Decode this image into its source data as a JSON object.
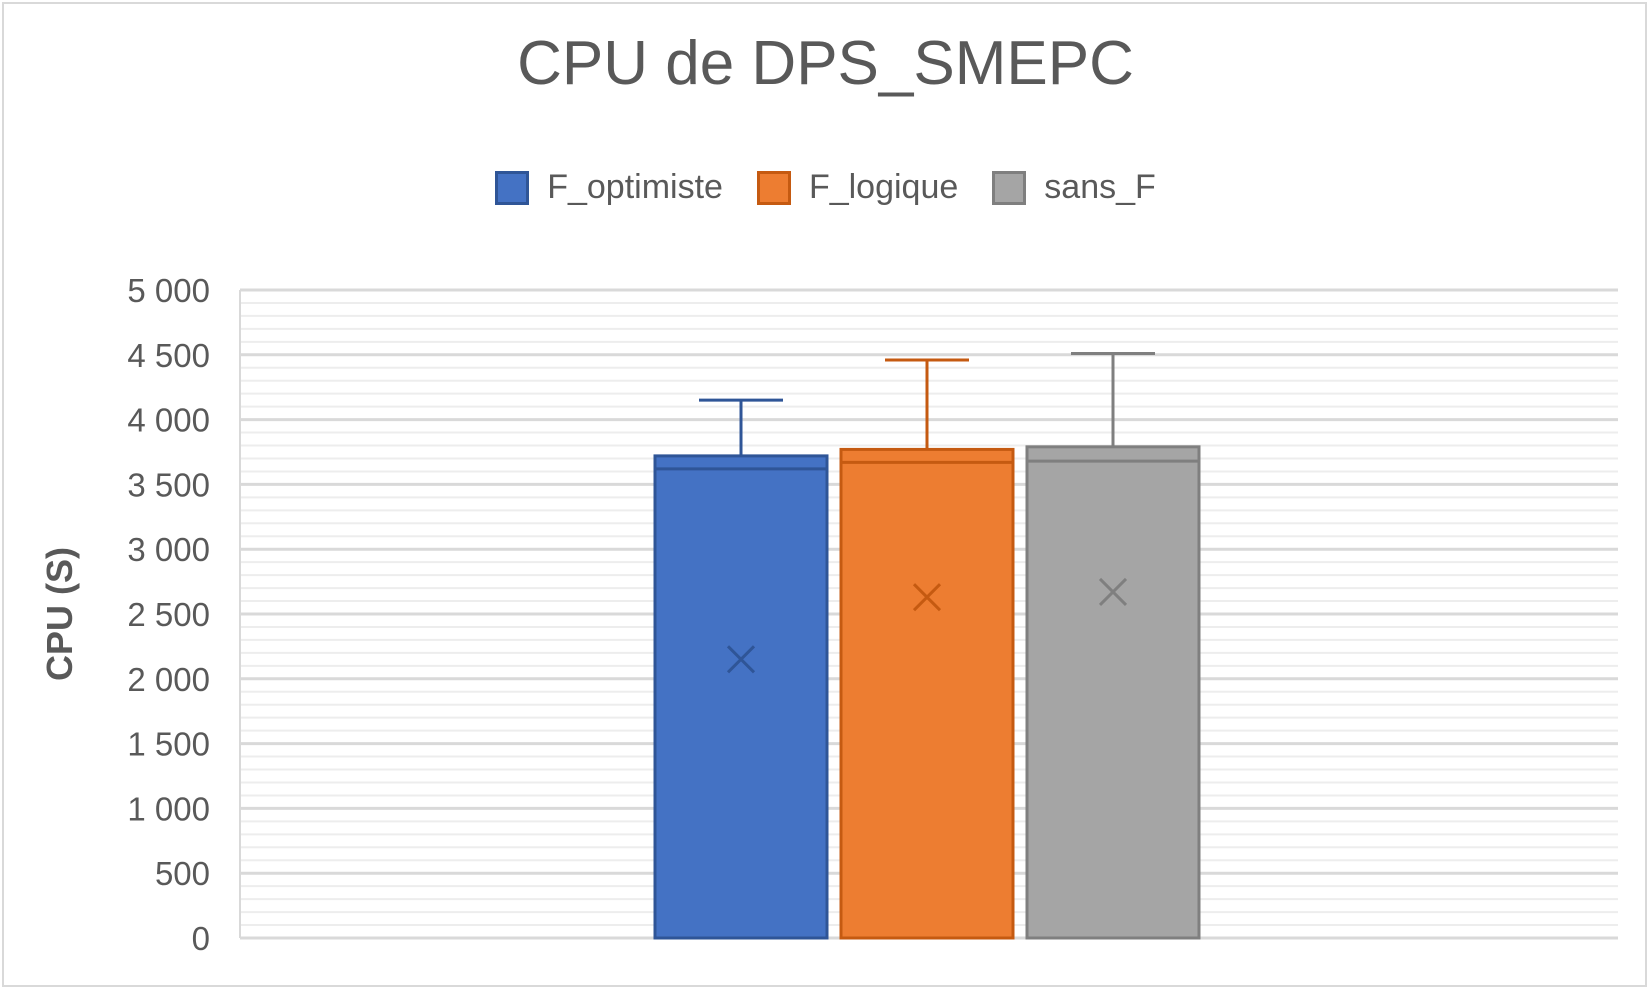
{
  "chart_data": {
    "type": "box",
    "title": "CPU de DPS_SMEPC",
    "ylabel": "CPU (S)",
    "xlabel": "",
    "ylim": [
      0,
      5000
    ],
    "yticks": [
      0,
      500,
      1000,
      1500,
      2000,
      2500,
      3000,
      3500,
      4000,
      4500,
      5000
    ],
    "ytick_labels": [
      "0",
      "500",
      "1 000",
      "1 500",
      "2 000",
      "2 500",
      "3 000",
      "3 500",
      "4 000",
      "4 500",
      "5 000"
    ],
    "grid": true,
    "legend_position": "top",
    "series": [
      {
        "name": "F_optimiste",
        "color": "#4472c4",
        "min": 0,
        "q1": 0,
        "median": 3620,
        "q3": 3720,
        "max": 4150,
        "mean": 2150
      },
      {
        "name": "F_logique",
        "color": "#ed7d31",
        "min": 0,
        "q1": 0,
        "median": 3670,
        "q3": 3770,
        "max": 4460,
        "mean": 2630
      },
      {
        "name": "sans_F",
        "color": "#a5a5a5",
        "min": 0,
        "q1": 0,
        "median": 3680,
        "q3": 3790,
        "max": 4510,
        "mean": 2670
      }
    ]
  }
}
